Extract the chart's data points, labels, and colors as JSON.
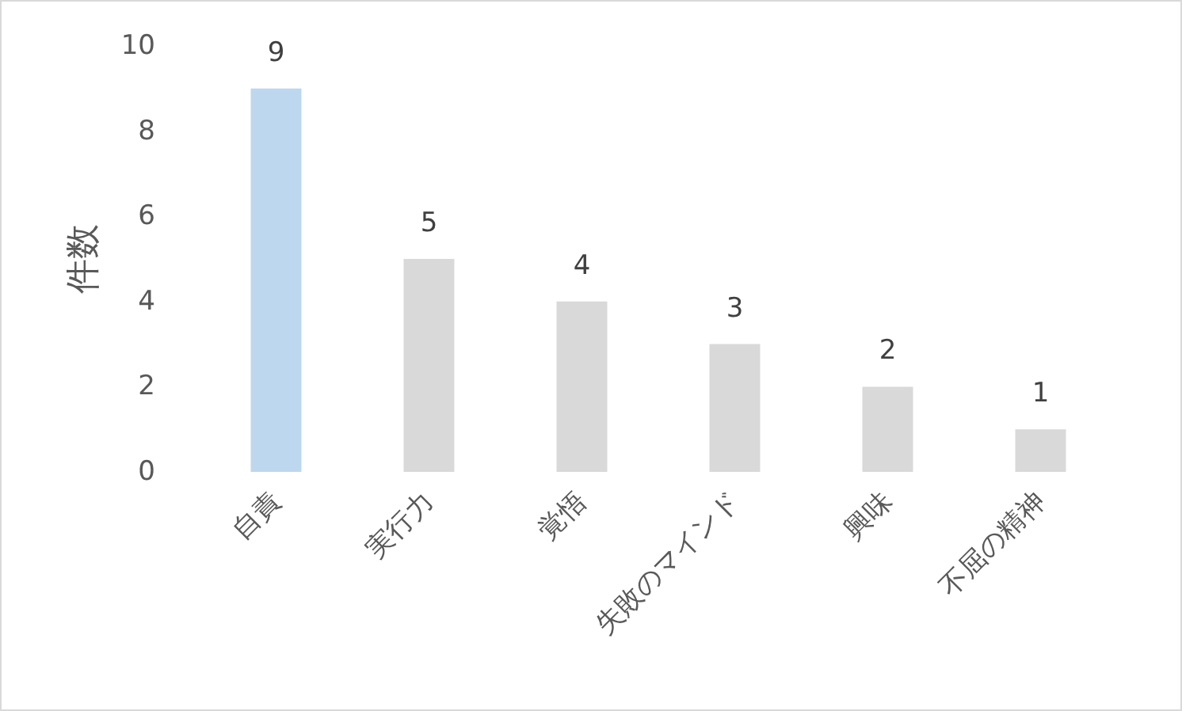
{
  "chart_data": {
    "type": "bar",
    "ylabel": "件数",
    "categories": [
      "自責",
      "実行力",
      "覚悟",
      "失敗のマインド",
      "興味",
      "不屈の精神"
    ],
    "values": [
      9,
      5,
      4,
      3,
      2,
      1
    ],
    "colors": [
      "#bdd7ee",
      "#d9d9d9",
      "#d9d9d9",
      "#d9d9d9",
      "#d9d9d9",
      "#d9d9d9"
    ],
    "ylim": [
      0,
      10
    ],
    "yticks": [
      0,
      2,
      4,
      6,
      8,
      10
    ],
    "grid": false,
    "data_labels": true
  }
}
